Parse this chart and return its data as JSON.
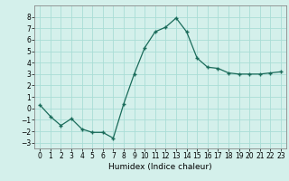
{
  "x": [
    0,
    1,
    2,
    3,
    4,
    5,
    6,
    7,
    8,
    9,
    10,
    11,
    12,
    13,
    14,
    15,
    16,
    17,
    18,
    19,
    20,
    21,
    22,
    23
  ],
  "y": [
    0.3,
    -0.7,
    -1.5,
    -0.9,
    -1.8,
    -2.1,
    -2.1,
    -2.6,
    0.4,
    3.0,
    5.3,
    6.7,
    7.1,
    7.9,
    6.7,
    4.4,
    3.6,
    3.5,
    3.1,
    3.0,
    3.0,
    3.0,
    3.1,
    3.2
  ],
  "xlabel": "Humidex (Indice chaleur)",
  "ylim": [
    -3.5,
    9.0
  ],
  "xlim": [
    -0.5,
    23.5
  ],
  "yticks": [
    -3,
    -2,
    -1,
    0,
    1,
    2,
    3,
    4,
    5,
    6,
    7,
    8
  ],
  "xticks": [
    0,
    1,
    2,
    3,
    4,
    5,
    6,
    7,
    8,
    9,
    10,
    11,
    12,
    13,
    14,
    15,
    16,
    17,
    18,
    19,
    20,
    21,
    22,
    23
  ],
  "line_color": "#1a6b5a",
  "marker_color": "#1a6b5a",
  "bg_color": "#d4f0eb",
  "grid_color": "#aaddd6",
  "xlabel_fontsize": 6.5,
  "tick_fontsize": 5.5
}
